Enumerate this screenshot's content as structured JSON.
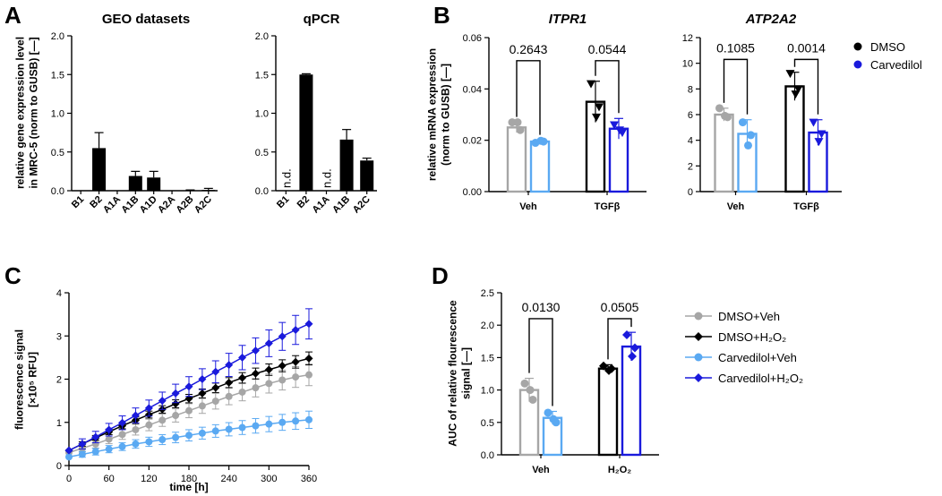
{
  "colors": {
    "black": "#000000",
    "grey": "#a6a6a6",
    "lightblue": "#5aa9f2",
    "blue": "#1a1adc",
    "dark": "#000000"
  },
  "panels": {
    "A": {
      "letter": "A"
    },
    "B": {
      "letter": "B"
    },
    "C": {
      "letter": "C"
    },
    "D": {
      "letter": "D"
    }
  },
  "chart_data": [
    {
      "id": "A_geo",
      "type": "bar",
      "title": "GEO datasets",
      "ylabel_line1": "relative gene expression level",
      "ylabel_line2": "in MRC-5 (norm to GUSB) [—]",
      "ylim": [
        0,
        2.0
      ],
      "yticks": [
        "0.0",
        "0.5",
        "1.0",
        "1.5",
        "2.0"
      ],
      "categories": [
        "B1",
        "B2",
        "A1A",
        "A1B",
        "A1D",
        "A2A",
        "A2B",
        "A2C"
      ],
      "values": [
        0,
        0.55,
        0,
        0.19,
        0.17,
        0,
        0.005,
        0.01
      ],
      "errors": [
        0,
        0.2,
        0,
        0.06,
        0.08,
        0,
        0.005,
        0.02
      ]
    },
    {
      "id": "A_qpcr",
      "type": "bar",
      "title": "qPCR",
      "ylim": [
        0,
        2.0
      ],
      "yticks": [
        "0.0",
        "0.5",
        "1.0",
        "1.5",
        "2.0"
      ],
      "categories": [
        "B1",
        "B2",
        "A1A",
        "A1B",
        "A2C"
      ],
      "values": [
        0,
        1.5,
        0,
        0.66,
        0.39
      ],
      "errors": [
        0,
        0.01,
        0,
        0.13,
        0.03
      ],
      "nd_label": "n.d.",
      "nd_categories": [
        "B1",
        "A1A"
      ]
    },
    {
      "id": "B_itpr1",
      "type": "bar",
      "title": "ITPR1",
      "ylabel_line1": "relative mRNA expression",
      "ylabel_line2": "(norm to GUSB) [—]",
      "ylim": [
        0,
        0.06
      ],
      "yticks": [
        "0.00",
        "0.02",
        "0.04",
        "0.06"
      ],
      "groups": [
        "Veh",
        "TGFβ"
      ],
      "series": [
        {
          "name": "DMSO",
          "values": [
            0.025,
            0.035
          ],
          "errors": [
            0.002,
            0.008
          ],
          "points": [
            [
              0.027,
              0.024,
              0.027
            ],
            [
              0.042,
              0.033,
              0.029
            ]
          ]
        },
        {
          "name": "Carvedilol",
          "values": [
            0.0195,
            0.0245
          ],
          "errors": [
            0.0005,
            0.004
          ],
          "points": [
            [
              0.019,
              0.0195,
              0.0198
            ],
            [
              0.026,
              0.023,
              0.024
            ]
          ]
        }
      ],
      "pvalues": [
        "0.2643",
        "0.0544"
      ]
    },
    {
      "id": "B_atp2a2",
      "type": "bar",
      "title": "ATP2A2",
      "ylim": [
        0,
        12
      ],
      "yticks": [
        "0",
        "2",
        "4",
        "6",
        "8",
        "10",
        "12"
      ],
      "groups": [
        "Veh",
        "TGFβ"
      ],
      "series": [
        {
          "name": "DMSO",
          "values": [
            6.0,
            8.2
          ],
          "errors": [
            0.5,
            1.1
          ],
          "points": [
            [
              6.5,
              5.8,
              5.9
            ],
            [
              9.2,
              8.0,
              7.6
            ]
          ]
        },
        {
          "name": "Carvedilol",
          "values": [
            4.5,
            4.6
          ],
          "errors": [
            1.1,
            1.0
          ],
          "points": [
            [
              5.4,
              4.4,
              3.6
            ],
            [
              5.4,
              4.5,
              3.9
            ]
          ]
        }
      ],
      "pvalues": [
        "0.1085",
        "0.0014"
      ],
      "legend": [
        "DMSO",
        "Carvedilol"
      ]
    },
    {
      "id": "C_time",
      "type": "line",
      "ylabel_line1": "fluorescence signal",
      "ylabel_line2": "[×10⁵ RFU]",
      "xlabel": "time [h]",
      "xlim": [
        0,
        360
      ],
      "ylim": [
        0,
        4
      ],
      "xticks": [
        "0",
        "60",
        "120",
        "180",
        "240",
        "300",
        "360"
      ],
      "yticks": [
        "0",
        "1",
        "2",
        "3",
        "4"
      ],
      "x": [
        0,
        20,
        40,
        60,
        80,
        100,
        120,
        140,
        160,
        180,
        200,
        220,
        240,
        260,
        280,
        300,
        320,
        340,
        360
      ],
      "series": [
        {
          "name": "DMSO+Veh",
          "values": [
            0.3,
            0.4,
            0.5,
            0.61,
            0.72,
            0.83,
            0.94,
            1.05,
            1.16,
            1.27,
            1.38,
            1.49,
            1.6,
            1.7,
            1.8,
            1.9,
            1.98,
            2.05,
            2.1
          ],
          "error": 0.25
        },
        {
          "name": "DMSO+H₂O₂",
          "values": [
            0.35,
            0.5,
            0.64,
            0.78,
            0.92,
            1.05,
            1.18,
            1.3,
            1.43,
            1.55,
            1.67,
            1.8,
            1.92,
            2.03,
            2.13,
            2.22,
            2.31,
            2.4,
            2.48
          ],
          "error": 0.15
        },
        {
          "name": "Carvedilol+Veh",
          "values": [
            0.2,
            0.26,
            0.32,
            0.38,
            0.44,
            0.5,
            0.55,
            0.6,
            0.65,
            0.7,
            0.75,
            0.8,
            0.84,
            0.88,
            0.92,
            0.96,
            1.0,
            1.03,
            1.06
          ],
          "error": 0.2
        },
        {
          "name": "Carvedilol+H₂O₂",
          "values": [
            0.35,
            0.5,
            0.66,
            0.83,
            0.99,
            1.16,
            1.33,
            1.5,
            1.67,
            1.83,
            2.0,
            2.17,
            2.33,
            2.5,
            2.66,
            2.83,
            2.99,
            3.14,
            3.28
          ],
          "error": 0.35
        }
      ]
    },
    {
      "id": "D_auc",
      "type": "bar",
      "ylabel_line1": "AUC of relative flourescence",
      "ylabel_line2": "signal [—]",
      "ylim": [
        0,
        2.5
      ],
      "yticks": [
        "0.0",
        "0.5",
        "1.0",
        "1.5",
        "2.0",
        "2.5"
      ],
      "groups": [
        "Veh",
        "H₂O₂"
      ],
      "series": [
        {
          "name": "DMSO",
          "values": [
            1.0,
            1.33
          ],
          "errors": [
            0.18,
            0.06
          ],
          "points": [
            [
              1.1,
              0.85,
              1.0
            ],
            [
              1.37,
              1.33,
              1.3
            ]
          ]
        },
        {
          "name": "Carvedilol",
          "values": [
            0.57,
            1.67
          ],
          "errors": [
            0.1,
            0.22
          ],
          "points": [
            [
              0.65,
              0.5,
              0.55
            ],
            [
              1.85,
              1.65,
              1.52
            ]
          ]
        }
      ],
      "pvalues": [
        "0.0130",
        "0.0505"
      ],
      "legend": [
        "DMSO+Veh",
        "DMSO+H₂O₂",
        "Carvedilol+Veh",
        "Carvedilol+H₂O₂"
      ]
    }
  ]
}
